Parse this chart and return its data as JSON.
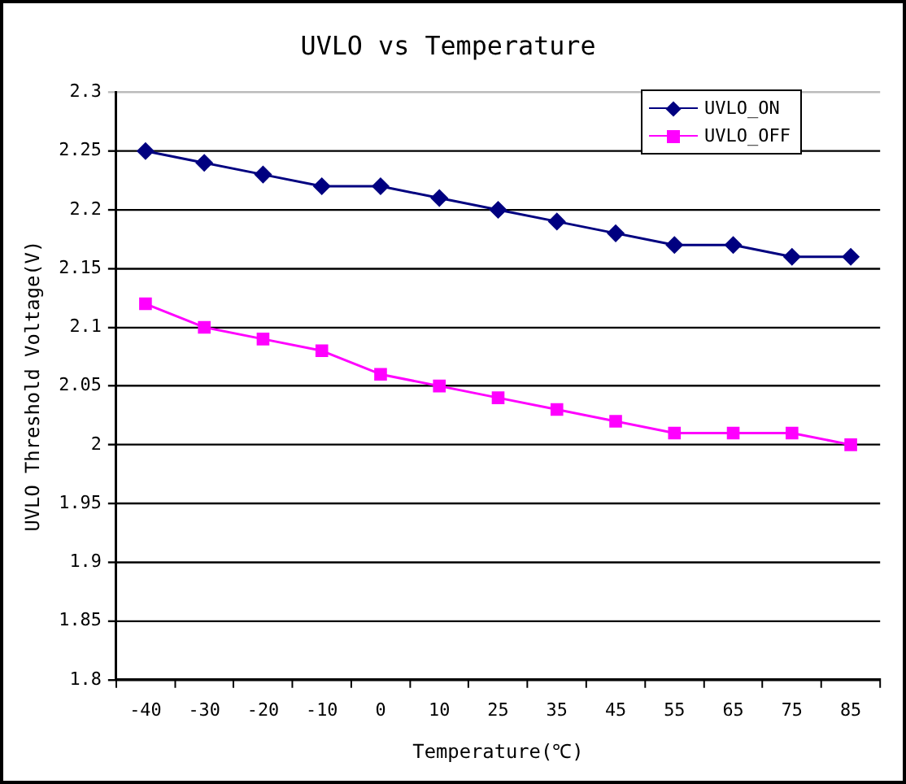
{
  "chart_data": {
    "type": "line",
    "title": "UVLO vs Temperature",
    "xlabel": "Temperature(℃)",
    "ylabel": "UVLO Threshold Voltage(V)",
    "categories": [
      "-40",
      "-30",
      "-20",
      "-10",
      "0",
      "10",
      "25",
      "35",
      "45",
      "55",
      "65",
      "75",
      "85"
    ],
    "series": [
      {
        "name": "UVLO_ON",
        "color": "#000080",
        "marker": "diamond",
        "values": [
          2.25,
          2.24,
          2.23,
          2.22,
          2.22,
          2.21,
          2.2,
          2.19,
          2.18,
          2.17,
          2.17,
          2.16,
          2.16
        ]
      },
      {
        "name": "UVLO_OFF",
        "color": "#ff00ff",
        "marker": "square",
        "values": [
          2.12,
          2.1,
          2.09,
          2.08,
          2.06,
          2.05,
          2.04,
          2.03,
          2.02,
          2.01,
          2.01,
          2.01,
          2.0
        ]
      }
    ],
    "ylim": [
      1.8,
      2.3
    ],
    "yticks": [
      1.8,
      1.85,
      1.9,
      1.95,
      2,
      2.05,
      2.1,
      2.15,
      2.2,
      2.25,
      2.3
    ],
    "grid": "y",
    "legend": "top right",
    "line_style": "solid"
  }
}
